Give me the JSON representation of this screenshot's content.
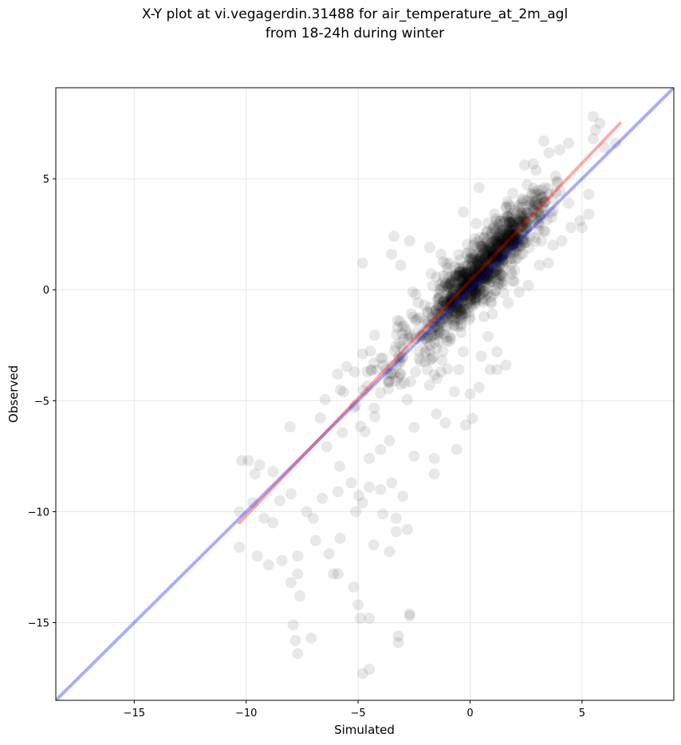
{
  "chart_data": {
    "type": "scatter",
    "title_line1": "X-Y plot at vi.vegagerdin.31488 for air_temperature_at_2m_agl",
    "title_line2": "from 18-24h during winter",
    "xlabel": "Simulated",
    "ylabel": "Observed",
    "xlim": [
      -18.5,
      9.1
    ],
    "ylim": [
      -18.5,
      9.1
    ],
    "x_ticks": [
      -15,
      -10,
      -5,
      0,
      5
    ],
    "y_ticks": [
      5,
      0,
      -5,
      -10,
      -15
    ],
    "x_tick_labels": [
      "−15",
      "−10",
      "−5",
      "0",
      "5"
    ],
    "y_tick_labels": [
      "5",
      "0",
      "−5",
      "−10",
      "−15"
    ],
    "grid": true,
    "identity_line": {
      "from": [
        -18.5,
        -18.5
      ],
      "to": [
        9.1,
        9.1
      ],
      "color": "#0000ff"
    },
    "regression_line": {
      "from": [
        -10.3,
        -10.5
      ],
      "to": [
        6.7,
        7.5
      ],
      "color": "#ff0000"
    },
    "point_color": "#000000",
    "outlier_points": [
      [
        -9.5,
        -12.0
      ],
      [
        -9.0,
        -12.4
      ],
      [
        -8.4,
        -12.2
      ],
      [
        -8.0,
        -13.2
      ],
      [
        -7.7,
        -12.8
      ],
      [
        -7.6,
        -13.8
      ],
      [
        -7.9,
        -15.1
      ],
      [
        -7.7,
        -16.4
      ],
      [
        -7.8,
        -15.8
      ],
      [
        -7.1,
        -15.7
      ],
      [
        -6.1,
        -12.8
      ],
      [
        -5.9,
        -12.8
      ],
      [
        -5.2,
        -13.4
      ],
      [
        -5.0,
        -14.2
      ],
      [
        -4.9,
        -14.8
      ],
      [
        -4.5,
        -14.8
      ],
      [
        -4.8,
        -17.3
      ],
      [
        -4.5,
        -17.1
      ],
      [
        -3.2,
        -15.6
      ],
      [
        -3.2,
        -15.9
      ],
      [
        -2.7,
        -14.7
      ],
      [
        -2.7,
        -14.6
      ],
      [
        -10.3,
        -11.6
      ],
      [
        -10.3,
        -10.0
      ],
      [
        -7.7,
        -12.0
      ],
      [
        -6.3,
        -11.9
      ],
      [
        -5.8,
        -11.2
      ],
      [
        -4.3,
        -11.5
      ],
      [
        -3.6,
        -11.8
      ],
      [
        -3.3,
        -10.9
      ],
      [
        -2.8,
        -10.8
      ],
      [
        -3.0,
        -9.3
      ],
      [
        -1.6,
        -8.3
      ],
      [
        -1.6,
        -7.6
      ],
      [
        -0.2,
        -6.1
      ],
      [
        0.1,
        -5.8
      ],
      [
        0.4,
        -4.4
      ],
      [
        0.9,
        -3.6
      ],
      [
        1.2,
        -3.6
      ],
      [
        1.2,
        -2.8
      ],
      [
        -1.8,
        -4.3
      ],
      [
        -2.7,
        -2.0
      ],
      [
        -3.5,
        1.6
      ],
      [
        -3.1,
        1.1
      ],
      [
        -2.7,
        2.2
      ],
      [
        -3.4,
        2.4
      ],
      [
        -4.8,
        1.2
      ],
      [
        -1.8,
        1.9
      ],
      [
        -1.3,
        1.6
      ],
      [
        -0.3,
        3.5
      ],
      [
        0.4,
        4.6
      ],
      [
        -0.7,
        0.6
      ],
      [
        0.8,
        3.0
      ],
      [
        5.3,
        3.4
      ],
      [
        5.0,
        2.8
      ],
      [
        5.3,
        4.3
      ],
      [
        5.5,
        6.8
      ],
      [
        6.5,
        6.6
      ],
      [
        6.0,
        6.4
      ],
      [
        3.3,
        6.7
      ],
      [
        5.5,
        7.8
      ],
      [
        5.8,
        7.5
      ],
      [
        5.6,
        7.2
      ],
      [
        4.4,
        6.6
      ],
      [
        4.0,
        6.3
      ],
      [
        -9.9,
        -7.7
      ],
      [
        -9.6,
        -8.3
      ],
      [
        -9.7,
        -9.6
      ],
      [
        -9.2,
        -10.3
      ],
      [
        -8.8,
        -10.5
      ],
      [
        -8.5,
        -9.5
      ],
      [
        -8.8,
        -8.2
      ],
      [
        -9.4,
        -7.9
      ],
      [
        -10.2,
        -7.7
      ],
      [
        -8.0,
        -9.2
      ],
      [
        -7.0,
        -10.3
      ],
      [
        -6.6,
        -9.4
      ],
      [
        -6.9,
        -11.3
      ],
      [
        -7.3,
        -10.0
      ],
      [
        -5.1,
        -10.0
      ],
      [
        -4.8,
        -9.6
      ],
      [
        -4.5,
        -8.9
      ],
      [
        -4.0,
        -9.0
      ],
      [
        -5.3,
        -8.7
      ],
      [
        -4.0,
        -7.2
      ],
      [
        -4.5,
        -7.6
      ],
      [
        -5.9,
        -9.1
      ],
      [
        -3.5,
        -8.7
      ],
      [
        -3.3,
        -10.3
      ],
      [
        -3.9,
        -10.1
      ],
      [
        -2.5,
        -7.5
      ],
      [
        -3.6,
        -6.8
      ],
      [
        -1.1,
        -6.0
      ],
      [
        -0.6,
        -7.2
      ],
      [
        -2.5,
        -6.2
      ],
      [
        -1.5,
        -5.6
      ],
      [
        -0.7,
        -4.6
      ],
      [
        0.0,
        -4.7
      ],
      [
        -0.5,
        -3.6
      ],
      [
        -1.3,
        -3.7
      ],
      [
        -0.3,
        -2.8
      ],
      [
        0.5,
        -3.0
      ],
      [
        1.6,
        -3.4
      ],
      [
        0.8,
        -2.1
      ],
      [
        1.0,
        -1.1
      ],
      [
        1.7,
        -0.6
      ],
      [
        2.2,
        -0.1
      ],
      [
        2.6,
        0.2
      ],
      [
        3.1,
        1.1
      ],
      [
        3.5,
        1.2
      ],
      [
        3.7,
        2.0
      ],
      [
        4.1,
        2.2
      ],
      [
        4.5,
        2.8
      ],
      [
        4.9,
        3.1
      ],
      [
        4.4,
        3.9
      ]
    ]
  }
}
